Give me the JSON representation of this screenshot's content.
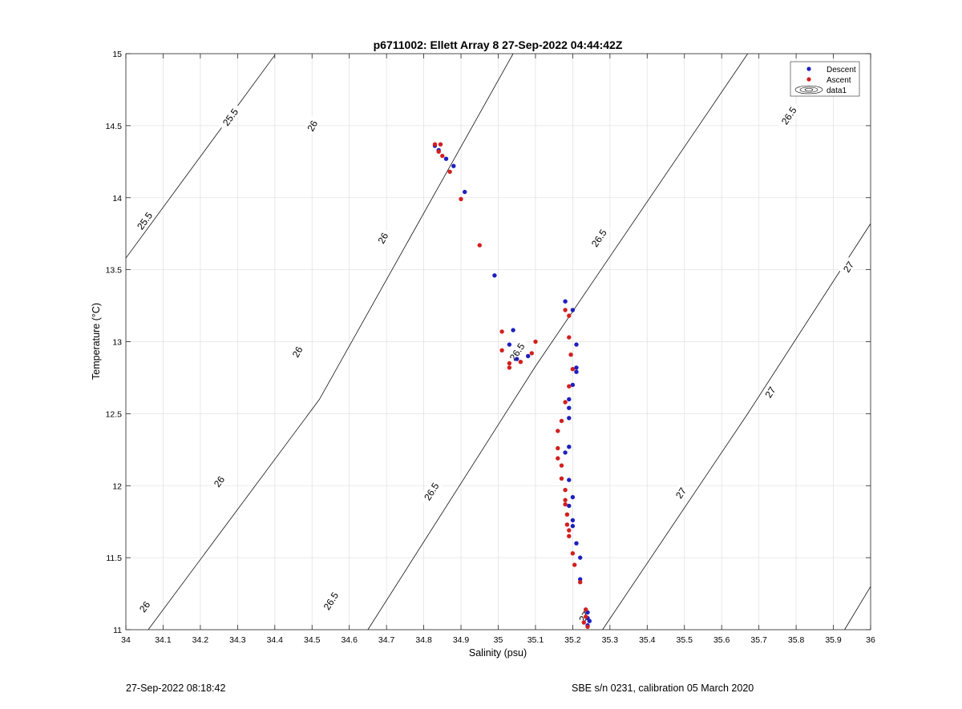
{
  "chart_data": {
    "type": "scatter",
    "title": "p6711002: Ellett Array 8 27-Sep-2022 04:44:42Z",
    "xlabel": "Salinity (psu)",
    "ylabel": "Temperature (°C)",
    "xlim": [
      34,
      36
    ],
    "ylim": [
      11,
      15
    ],
    "grid": true,
    "x_ticks": [
      "34",
      "34.1",
      "34.2",
      "34.3",
      "34.4",
      "34.5",
      "34.6",
      "34.7",
      "34.8",
      "34.9",
      "35",
      "35.1",
      "35.2",
      "35.3",
      "35.4",
      "35.5",
      "35.6",
      "35.7",
      "35.8",
      "35.9",
      "36"
    ],
    "y_ticks": [
      "11",
      "11.5",
      "12",
      "12.5",
      "13",
      "13.5",
      "14",
      "14.5",
      "15"
    ],
    "legend": {
      "position": "top-right",
      "entries": [
        {
          "label": "Descent",
          "color": "#1f1fbf"
        },
        {
          "label": "Ascent",
          "color": "#d21f1f"
        },
        {
          "label": "data1",
          "color": "#000000"
        }
      ]
    },
    "contours": [
      {
        "level": "25.5",
        "points": [
          [
            34.0,
            13.58
          ],
          [
            34.4,
            14.99
          ]
        ],
        "labels": [
          {
            "text": "25.5",
            "x": 34.28,
            "y": 14.56
          },
          {
            "text": "25.5",
            "x": 34.05,
            "y": 13.84
          }
        ]
      },
      {
        "level": "26",
        "points": [
          [
            34.06,
            11.0
          ],
          [
            34.52,
            12.6
          ],
          [
            35.04,
            15.0
          ]
        ],
        "labels": [
          {
            "text": "26",
            "x": 34.5,
            "y": 14.5
          },
          {
            "text": "26",
            "x": 34.69,
            "y": 13.72
          },
          {
            "text": "26",
            "x": 34.46,
            "y": 12.93
          },
          {
            "text": "26",
            "x": 34.25,
            "y": 12.03
          },
          {
            "text": "26",
            "x": 34.05,
            "y": 11.16
          }
        ]
      },
      {
        "level": "26.5",
        "points": [
          [
            34.65,
            11.0
          ],
          [
            35.1,
            12.83
          ],
          [
            35.67,
            15.0
          ]
        ],
        "labels": [
          {
            "text": "26.5",
            "x": 35.78,
            "y": 14.57
          },
          {
            "text": "26.5",
            "x": 35.27,
            "y": 13.72
          },
          {
            "text": "26.5",
            "x": 35.05,
            "y": 12.93
          },
          {
            "text": "26.5",
            "x": 34.82,
            "y": 11.96
          },
          {
            "text": "26.5",
            "x": 34.55,
            "y": 11.2
          }
        ]
      },
      {
        "level": "27",
        "points": [
          [
            35.28,
            11.0
          ],
          [
            35.67,
            12.5
          ],
          [
            36.0,
            13.82
          ]
        ],
        "labels": [
          {
            "text": "27",
            "x": 35.94,
            "y": 13.52
          },
          {
            "text": "27",
            "x": 35.73,
            "y": 12.65
          },
          {
            "text": "27",
            "x": 35.49,
            "y": 11.95
          },
          {
            "text": "27",
            "x": 35.23,
            "y": 11.09
          }
        ]
      },
      {
        "level": "",
        "points": [
          [
            35.93,
            11.0
          ],
          [
            36.0,
            11.3
          ]
        ],
        "labels": []
      }
    ],
    "series": [
      {
        "name": "Descent",
        "color": "#1f1fbf",
        "points": [
          [
            34.83,
            14.36
          ],
          [
            34.84,
            14.33
          ],
          [
            34.86,
            14.27
          ],
          [
            34.88,
            14.22
          ],
          [
            34.91,
            14.04
          ],
          [
            34.99,
            13.46
          ],
          [
            35.04,
            13.08
          ],
          [
            35.03,
            12.98
          ],
          [
            35.05,
            12.88
          ],
          [
            35.08,
            12.9
          ],
          [
            35.18,
            13.28
          ],
          [
            35.2,
            13.22
          ],
          [
            35.21,
            12.98
          ],
          [
            35.21,
            12.82
          ],
          [
            35.21,
            12.79
          ],
          [
            35.2,
            12.7
          ],
          [
            35.19,
            12.6
          ],
          [
            35.19,
            12.54
          ],
          [
            35.19,
            12.47
          ],
          [
            35.19,
            12.27
          ],
          [
            35.18,
            12.23
          ],
          [
            35.19,
            12.04
          ],
          [
            35.2,
            11.92
          ],
          [
            35.19,
            11.86
          ],
          [
            35.2,
            11.76
          ],
          [
            35.2,
            11.72
          ],
          [
            35.21,
            11.6
          ],
          [
            35.22,
            11.5
          ],
          [
            35.22,
            11.35
          ],
          [
            35.24,
            11.12
          ],
          [
            35.24,
            11.08
          ],
          [
            35.245,
            11.06
          ],
          [
            35.24,
            11.03
          ]
        ]
      },
      {
        "name": "Ascent",
        "color": "#d21f1f",
        "points": [
          [
            34.83,
            14.37
          ],
          [
            34.845,
            14.37
          ],
          [
            34.84,
            14.32
          ],
          [
            34.85,
            14.29
          ],
          [
            34.87,
            14.18
          ],
          [
            34.9,
            13.99
          ],
          [
            34.95,
            13.67
          ],
          [
            35.01,
            13.07
          ],
          [
            35.01,
            12.94
          ],
          [
            35.03,
            12.85
          ],
          [
            35.03,
            12.82
          ],
          [
            35.06,
            12.86
          ],
          [
            35.09,
            12.92
          ],
          [
            35.1,
            13.0
          ],
          [
            35.18,
            13.22
          ],
          [
            35.19,
            13.18
          ],
          [
            35.19,
            13.03
          ],
          [
            35.195,
            12.91
          ],
          [
            35.2,
            12.81
          ],
          [
            35.19,
            12.69
          ],
          [
            35.18,
            12.58
          ],
          [
            35.17,
            12.45
          ],
          [
            35.16,
            12.38
          ],
          [
            35.16,
            12.26
          ],
          [
            35.16,
            12.19
          ],
          [
            35.17,
            12.14
          ],
          [
            35.17,
            12.05
          ],
          [
            35.18,
            11.97
          ],
          [
            35.18,
            11.9
          ],
          [
            35.18,
            11.87
          ],
          [
            35.185,
            11.8
          ],
          [
            35.185,
            11.73
          ],
          [
            35.19,
            11.69
          ],
          [
            35.19,
            11.65
          ],
          [
            35.2,
            11.53
          ],
          [
            35.205,
            11.45
          ],
          [
            35.22,
            11.33
          ],
          [
            35.235,
            11.14
          ],
          [
            35.235,
            11.09
          ],
          [
            35.23,
            11.05
          ],
          [
            35.24,
            11.02
          ]
        ]
      }
    ]
  },
  "footer": {
    "left": "27-Sep-2022 08:18:42",
    "right": "SBE s/n 0231, calibration 05 March 2020"
  }
}
